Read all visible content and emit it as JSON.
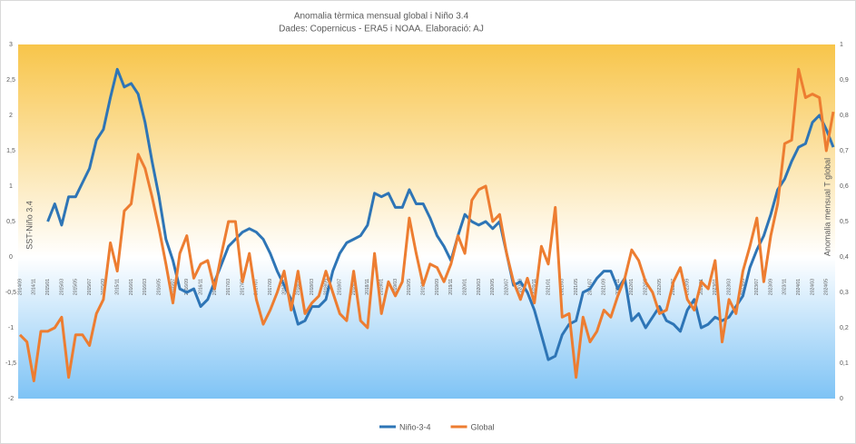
{
  "chart_data": {
    "type": "line",
    "title": "Anomalia tèrmica mensual global i Niño 3.4",
    "subtitle": "Dades: Copernicus - ERA5 i NOAA. Elaboració: AJ",
    "y_label": "SST-Niño 3.4",
    "y2_label": "Anomalia mensual T global",
    "categories": [
      "2014/09",
      null,
      "2014/11",
      null,
      "2015/01",
      null,
      "2015/03",
      null,
      "2015/05",
      null,
      "2015/07",
      null,
      "2015/09",
      null,
      "2015/11",
      null,
      "2016/01",
      null,
      "2016/03",
      null,
      "2016/05",
      null,
      "2016/07",
      null,
      "2016/09",
      null,
      "2016/11",
      null,
      "2017/01",
      null,
      "2017/03",
      null,
      "2017/05",
      null,
      "2017/07",
      null,
      "2017/09",
      null,
      "2017/11",
      null,
      "2018/01",
      null,
      "2018/03",
      null,
      "2018/05",
      null,
      "2018/07",
      null,
      "2018/09",
      null,
      "2018/11",
      null,
      "2019/01",
      null,
      "2019/03",
      null,
      "2019/05",
      null,
      "2019/07",
      null,
      "2019/09",
      null,
      "2019/11",
      null,
      "2020/01",
      null,
      "2020/03",
      null,
      "2020/05",
      null,
      "2020/07",
      null,
      "2020/09",
      null,
      "2020/11",
      null,
      "2021/01",
      null,
      "2021/03",
      null,
      "2021/05",
      null,
      "2021/07",
      null,
      "2021/09",
      null,
      "2021/11",
      null,
      "2022/01",
      null,
      "2022/03",
      null,
      "2022/05",
      null,
      "2022/07",
      null,
      "2022/09",
      null,
      "2022/11",
      null,
      "2023/01",
      null,
      "2023/03",
      null,
      "2023/05",
      null,
      "2023/07",
      null,
      "2023/09",
      null,
      "2023/11",
      null,
      "2024/01",
      null,
      "2024/03",
      null,
      "2024/05",
      null
    ],
    "series": [
      {
        "name": "Niño-3-4",
        "color": "#2e75b6",
        "axis": "y",
        "values": [
          null,
          null,
          null,
          null,
          0.5,
          0.75,
          0.45,
          0.85,
          0.85,
          1.05,
          1.25,
          1.65,
          1.8,
          2.25,
          2.65,
          2.4,
          2.45,
          2.3,
          1.9,
          1.35,
          0.85,
          0.25,
          -0.05,
          -0.45,
          -0.5,
          -0.45,
          -0.7,
          -0.6,
          -0.35,
          -0.1,
          0.15,
          0.25,
          0.35,
          0.4,
          0.35,
          0.25,
          0.05,
          -0.2,
          -0.4,
          -0.6,
          -0.95,
          -0.9,
          -0.7,
          -0.7,
          -0.6,
          -0.2,
          0.05,
          0.2,
          0.25,
          0.3,
          0.45,
          0.9,
          0.85,
          0.9,
          0.7,
          0.7,
          0.95,
          0.75,
          0.75,
          0.55,
          0.3,
          0.15,
          -0.05,
          0.3,
          0.6,
          0.5,
          0.45,
          0.5,
          0.4,
          0.5,
          0.05,
          -0.4,
          -0.35,
          -0.5,
          -0.75,
          -1.1,
          -1.45,
          -1.4,
          -1.1,
          -0.95,
          -0.9,
          -0.5,
          -0.45,
          -0.3,
          -0.2,
          -0.2,
          -0.45,
          -0.3,
          -0.9,
          -0.8,
          -1.0,
          -0.85,
          -0.7,
          -0.9,
          -0.95,
          -1.05,
          -0.75,
          -0.6,
          -1.0,
          -0.95,
          -0.85,
          -0.9,
          -0.85,
          -0.7,
          -0.55,
          -0.15,
          0.1,
          0.3,
          0.6,
          0.95,
          1.1,
          1.35,
          1.55,
          1.6,
          1.9,
          2.0,
          1.8,
          1.55
        ]
      },
      {
        "name": "Global",
        "color": "#ed7d31",
        "axis": "y2",
        "values": [
          0.18,
          0.16,
          0.05,
          0.19,
          0.19,
          0.2,
          0.23,
          0.06,
          0.18,
          0.18,
          0.15,
          0.24,
          0.28,
          0.44,
          0.36,
          0.53,
          0.55,
          0.69,
          0.65,
          0.57,
          0.48,
          0.38,
          0.27,
          0.41,
          0.46,
          0.34,
          0.38,
          0.39,
          0.31,
          0.41,
          0.5,
          0.5,
          0.33,
          0.41,
          0.28,
          0.21,
          0.25,
          0.3,
          0.36,
          0.25,
          0.36,
          0.24,
          0.27,
          0.29,
          0.36,
          0.3,
          0.24,
          0.22,
          0.36,
          0.22,
          0.2,
          0.41,
          0.24,
          0.33,
          0.29,
          0.33,
          0.51,
          0.41,
          0.32,
          0.38,
          0.37,
          0.33,
          0.38,
          0.46,
          0.41,
          0.56,
          0.59,
          0.6,
          0.5,
          0.52,
          0.41,
          0.33,
          0.28,
          0.34,
          0.27,
          0.43,
          0.38,
          0.54,
          0.23,
          0.24,
          0.06,
          0.23,
          0.16,
          0.19,
          0.25,
          0.23,
          0.29,
          0.34,
          0.42,
          0.39,
          0.33,
          0.3,
          0.24,
          0.25,
          0.33,
          0.37,
          0.28,
          0.25,
          0.33,
          0.31,
          0.39,
          0.16,
          0.28,
          0.24,
          0.36,
          0.43,
          0.51,
          0.33,
          0.46,
          0.55,
          0.72,
          0.73,
          0.93,
          0.85,
          0.86,
          0.85,
          0.7,
          0.81
        ]
      }
    ],
    "ylim": [
      -2,
      3
    ],
    "yticks": [
      -2,
      {
        "value": -1.5,
        "label": "-1,5"
      },
      -1,
      {
        "value": -0.5,
        "label": "-0,5"
      },
      0,
      {
        "value": 0.5,
        "label": "0,5"
      },
      1,
      {
        "value": 1.5,
        "label": "1,5"
      },
      2,
      {
        "value": 2.5,
        "label": "2,5"
      },
      3
    ],
    "y2lim": [
      0,
      1
    ],
    "y2ticks": [
      0,
      {
        "value": 0.1,
        "label": "0,1"
      },
      {
        "value": 0.2,
        "label": "0,2"
      },
      {
        "value": 0.3,
        "label": "0,3"
      },
      {
        "value": 0.4,
        "label": "0,4"
      },
      {
        "value": 0.5,
        "label": "0,5"
      },
      {
        "value": 0.6,
        "label": "0,6"
      },
      {
        "value": 0.7,
        "label": "0,7"
      },
      {
        "value": 0.8,
        "label": "0,8"
      },
      {
        "value": 0.9,
        "label": "0,9"
      },
      1
    ],
    "legend": "bottom"
  }
}
